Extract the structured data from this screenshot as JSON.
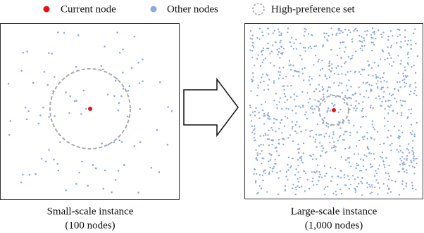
{
  "legend": {
    "items": [
      {
        "label": "Current node"
      },
      {
        "label": "Other nodes"
      },
      {
        "label": "High-preference set"
      }
    ]
  },
  "panels": [
    {
      "caption": {
        "line1": "Small-scale instance",
        "line2": "(100 nodes)"
      }
    },
    {
      "caption": {
        "line1": "Large-scale instance",
        "line2": "(1,000 nodes)"
      }
    }
  ]
}
